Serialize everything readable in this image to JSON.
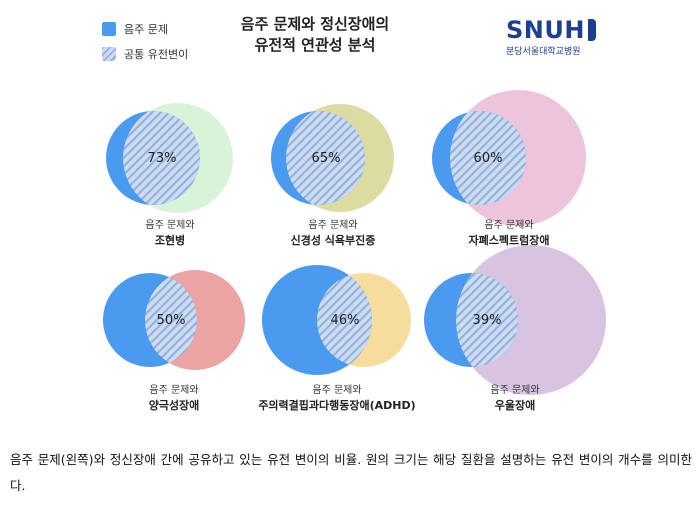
{
  "legend": [
    {
      "label": "음주 문제",
      "kind": "solid"
    },
    {
      "label": "공통 유전변이",
      "kind": "hatch"
    }
  ],
  "title": {
    "line1": "음주 문제와 정신장애의",
    "line2": "유전적 연관성 분석"
  },
  "logo": {
    "main": "SNUH",
    "sub": "분당서울대학교병원"
  },
  "colors": {
    "alcohol_blue": "#4a9af0",
    "hatch_light": "#cfdcef",
    "hatch_dark": "#92b3e0"
  },
  "chart_data": {
    "type": "venn",
    "reference_set": "음주 문제",
    "items": [
      {
        "overlap": "73%",
        "label_line1": "음주 문제와",
        "label_line2": "조현병",
        "color": "#d9f3d9",
        "disorder_size": "larger"
      },
      {
        "overlap": "65%",
        "label_line1": "음주 문제와",
        "label_line2": "신경성 식욕부진증",
        "color": "#dcdca2",
        "disorder_size": "larger"
      },
      {
        "overlap": "60%",
        "label_line1": "음주 문제와",
        "label_line2": "자폐스펙트럼장애",
        "color": "#edc4db",
        "disorder_size": "larger"
      },
      {
        "overlap": "50%",
        "label_line1": "음주 문제와",
        "label_line2": "양극성장애",
        "color": "#eba3a3",
        "disorder_size": "equal"
      },
      {
        "overlap": "46%",
        "label_line1": "음주 문제와",
        "label_line2": "주의력결핍과다행동장애(ADHD)",
        "color": "#f6dd9d",
        "disorder_size": "smaller"
      },
      {
        "overlap": "39%",
        "label_line1": "음주 문제와",
        "label_line2": "우울장애",
        "color": "#d8c3e0",
        "disorder_size": "larger"
      }
    ]
  },
  "caption": "음주 문제(왼쪽)와 정신장애 간에 공유하고 있는 유전 변이의 비율. 원의 크기는 해당 질환을 설명하는 유전 변이의 개수를 의미한다."
}
